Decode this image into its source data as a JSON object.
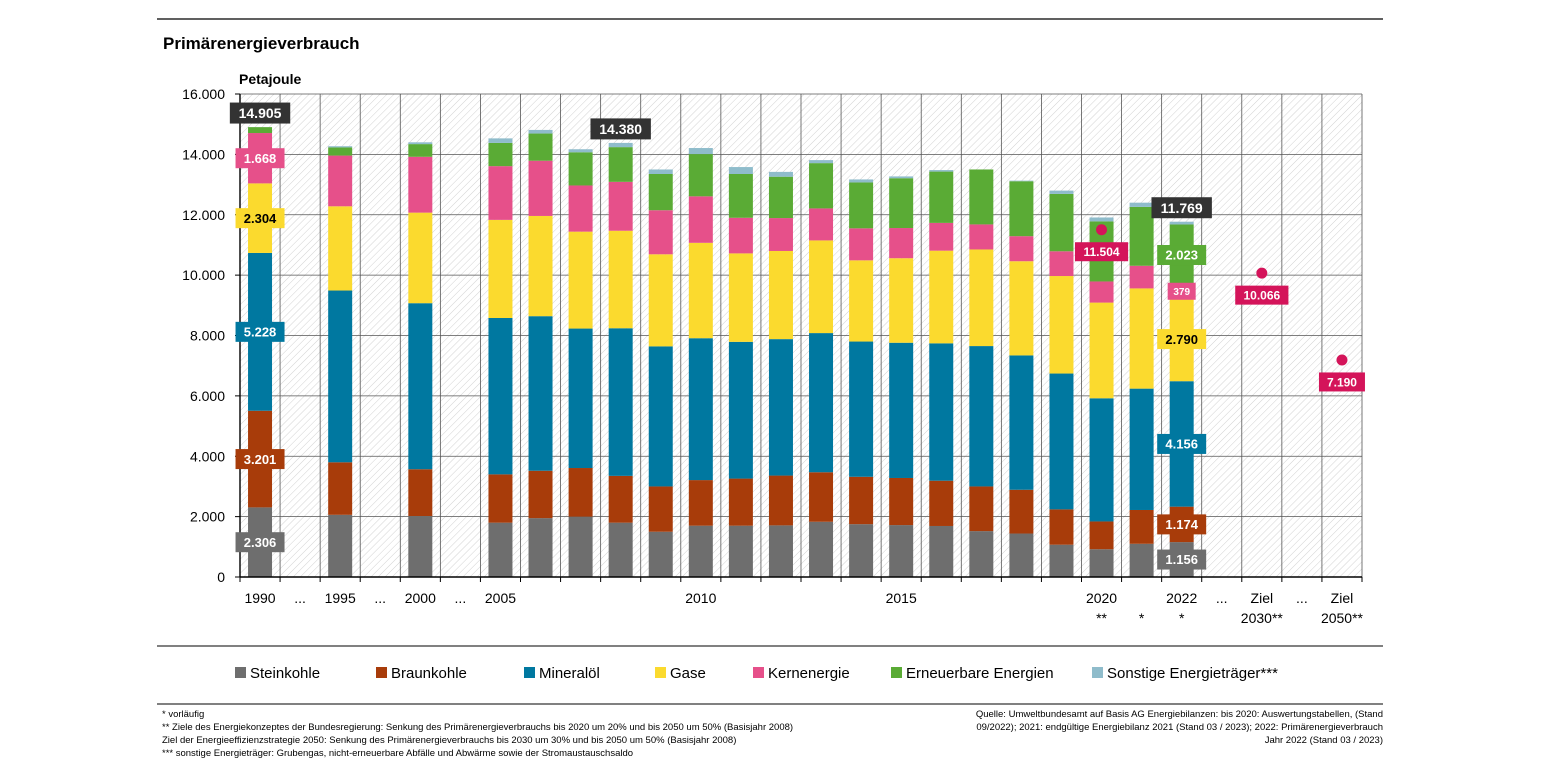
{
  "chart_data": {
    "type": "bar",
    "stacked": true,
    "title": "Primärenergieverbrauch",
    "ylabel": "Petajoule",
    "ylim": [
      0,
      16000
    ],
    "yticks": [
      0,
      2000,
      4000,
      6000,
      8000,
      10000,
      12000,
      14000,
      16000
    ],
    "ytick_labels": [
      "0",
      "2.000",
      "4.000",
      "6.000",
      "8.000",
      "10.000",
      "12.000",
      "14.000",
      "16.000"
    ],
    "grid": true,
    "legend_position": "bottom",
    "slots": [
      {
        "label": "1990",
        "label2": ""
      },
      {
        "label": "...",
        "label2": ""
      },
      {
        "label": "1995",
        "label2": ""
      },
      {
        "label": "...",
        "label2": ""
      },
      {
        "label": "2000",
        "label2": ""
      },
      {
        "label": "...",
        "label2": ""
      },
      {
        "label": "2005",
        "label2": ""
      },
      {
        "label": "",
        "label2": ""
      },
      {
        "label": "",
        "label2": ""
      },
      {
        "label": "",
        "label2": ""
      },
      {
        "label": "",
        "label2": ""
      },
      {
        "label": "2010",
        "label2": ""
      },
      {
        "label": "",
        "label2": ""
      },
      {
        "label": "",
        "label2": ""
      },
      {
        "label": "",
        "label2": ""
      },
      {
        "label": "",
        "label2": ""
      },
      {
        "label": "2015",
        "label2": ""
      },
      {
        "label": "",
        "label2": ""
      },
      {
        "label": "",
        "label2": ""
      },
      {
        "label": "",
        "label2": ""
      },
      {
        "label": "",
        "label2": ""
      },
      {
        "label": "2020",
        "label2": "**"
      },
      {
        "label": "",
        "label2": "*"
      },
      {
        "label": "2022",
        "label2": "*"
      },
      {
        "label": "...",
        "label2": ""
      },
      {
        "label": "Ziel",
        "label2": "2030**"
      },
      {
        "label": "...",
        "label2": ""
      },
      {
        "label": "Ziel",
        "label2": "2050**"
      }
    ],
    "series": [
      {
        "name": "Steinkohle",
        "color": "#6e6e6e"
      },
      {
        "name": "Braunkohle",
        "color": "#a83c0a"
      },
      {
        "name": "Mineralöl",
        "color": "#0078a0"
      },
      {
        "name": "Gase",
        "color": "#fbda2e"
      },
      {
        "name": "Kernenergie",
        "color": "#e6508a"
      },
      {
        "name": "Erneuerbare Energien",
        "color": "#5aab35"
      },
      {
        "name": "Sonstige Energieträger***",
        "color": "#8fbccb"
      }
    ],
    "bars": [
      {
        "slot": 0,
        "year": "1990",
        "values": [
          2306,
          3201,
          5228,
          2304,
          1668,
          196,
          2
        ]
      },
      {
        "slot": 2,
        "year": "1995",
        "values": [
          2060,
          1740,
          5690,
          2790,
          1680,
          270,
          40
        ]
      },
      {
        "slot": 4,
        "year": "2000",
        "values": [
          2020,
          1550,
          5500,
          3000,
          1850,
          420,
          60
        ]
      },
      {
        "slot": 6,
        "year": "2005",
        "values": [
          1800,
          1600,
          5180,
          3250,
          1780,
          770,
          150
        ]
      },
      {
        "slot": 7,
        "year": "2006",
        "values": [
          1950,
          1570,
          5120,
          3320,
          1830,
          900,
          120
        ]
      },
      {
        "slot": 8,
        "year": "2007",
        "values": [
          2000,
          1610,
          4620,
          3210,
          1530,
          1100,
          100
        ]
      },
      {
        "slot": 9,
        "year": "2008",
        "values": [
          1800,
          1550,
          4890,
          3230,
          1620,
          1150,
          140
        ]
      },
      {
        "slot": 10,
        "year": "2009",
        "values": [
          1500,
          1500,
          4640,
          3050,
          1460,
          1200,
          150
        ]
      },
      {
        "slot": 11,
        "year": "2010",
        "values": [
          1700,
          1510,
          4700,
          3160,
          1540,
          1400,
          200
        ]
      },
      {
        "slot": 12,
        "year": "2011",
        "values": [
          1700,
          1560,
          4530,
          2930,
          1180,
          1450,
          230
        ]
      },
      {
        "slot": 13,
        "year": "2012",
        "values": [
          1710,
          1650,
          4520,
          2920,
          1090,
          1370,
          160
        ]
      },
      {
        "slot": 14,
        "year": "2013",
        "values": [
          1830,
          1640,
          4610,
          3070,
          1060,
          1500,
          100
        ]
      },
      {
        "slot": 15,
        "year": "2014",
        "values": [
          1750,
          1570,
          4480,
          2690,
          1060,
          1520,
          100
        ]
      },
      {
        "slot": 16,
        "year": "2015",
        "values": [
          1720,
          1560,
          4480,
          2800,
          1000,
          1650,
          60
        ]
      },
      {
        "slot": 17,
        "year": "2016",
        "values": [
          1690,
          1500,
          4550,
          3070,
          920,
          1700,
          50
        ]
      },
      {
        "slot": 18,
        "year": "2017",
        "values": [
          1520,
          1480,
          4650,
          3200,
          830,
          1820,
          0
        ]
      },
      {
        "slot": 19,
        "year": "2018",
        "values": [
          1440,
          1450,
          4450,
          3120,
          830,
          1820,
          20
        ]
      },
      {
        "slot": 20,
        "year": "2019",
        "values": [
          1070,
          1170,
          4500,
          3230,
          820,
          1900,
          110
        ]
      },
      {
        "slot": 21,
        "year": "2020",
        "values": [
          920,
          920,
          4080,
          3170,
          700,
          1990,
          130
        ]
      },
      {
        "slot": 22,
        "year": "2021",
        "values": [
          1100,
          1120,
          4020,
          3320,
          750,
          1950,
          140
        ]
      },
      {
        "slot": 23,
        "year": "2022",
        "values": [
          1156,
          1174,
          4156,
          2790,
          379,
          2023,
          91
        ]
      }
    ],
    "targets": [
      {
        "slot": 21,
        "value": 11504,
        "label": "11.504"
      },
      {
        "slot": 25,
        "value": 10066,
        "label": "10.066"
      },
      {
        "slot": 27,
        "value": 7190,
        "label": "7.190"
      }
    ],
    "total_labels": [
      {
        "slot": 0,
        "label": "14.905"
      },
      {
        "slot": 9,
        "label": "14.380"
      },
      {
        "slot": 23,
        "label": "11.769"
      }
    ],
    "segment_labels": [
      {
        "slot": 0,
        "series": 0,
        "label": "2.306"
      },
      {
        "slot": 0,
        "series": 1,
        "label": "3.201"
      },
      {
        "slot": 0,
        "series": 2,
        "label": "5.228"
      },
      {
        "slot": 0,
        "series": 3,
        "label": "2.304"
      },
      {
        "slot": 0,
        "series": 4,
        "label": "1.668"
      },
      {
        "slot": 23,
        "series": 0,
        "label": "1.156"
      },
      {
        "slot": 23,
        "series": 1,
        "label": "1.174"
      },
      {
        "slot": 23,
        "series": 2,
        "label": "4.156"
      },
      {
        "slot": 23,
        "series": 3,
        "label": "2.790"
      },
      {
        "slot": 23,
        "series": 4,
        "label": "379"
      },
      {
        "slot": 23,
        "series": 5,
        "label": "2.023"
      }
    ],
    "target_color": "#d4145a",
    "total_label_color": "#333333"
  },
  "footnotes": [
    "* vorläufig",
    "** Ziele des Energiekonzeptes der Bundesregierung: Senkung des Primärenergieverbrauchs bis 2020 um 20% und bis 2050 um 50% (Basisjahr 2008)",
    "Ziel der Energieeffizienzstrategie 2050: Senkung des Primärenergieverbrauchs bis 2030 um 30% und bis 2050 um 50% (Basisjahr 2008)",
    "*** sonstige Energieträger: Grubengas, nicht-erneuerbare Abfälle und Abwärme sowie der Stromaustauschsaldo"
  ],
  "source_lines": [
    "Quelle: Umweltbundesamt auf Basis AG Energiebilanzen: bis 2020: Auswertungstabellen, (Stand",
    "09/2022); 2021: endgültige Energiebilanz 2021 (Stand 03 / 2023); 2022: Primärenergieverbrauch",
    "Jahr 2022 (Stand 03 / 2023)"
  ]
}
